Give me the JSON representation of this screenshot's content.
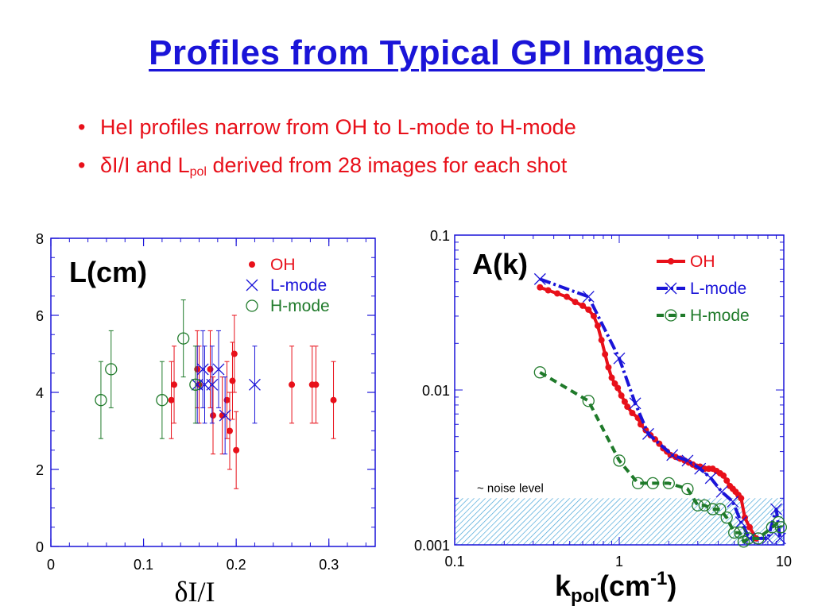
{
  "slide": {
    "title": "Profiles from Typical GPI Images",
    "bullets": [
      {
        "text": "HeI profiles narrow from OH to L-mode to H-mode"
      },
      {
        "text_a": "δI/I and L",
        "sub": "pol",
        "text_b": " derived from 28 images for each shot"
      }
    ]
  },
  "colors": {
    "title": "#1a14d8",
    "bullets": "#e8101a",
    "oh": "#e8101a",
    "lmode": "#1a14d8",
    "hmode": "#1f7a2a",
    "noise_fill": "#8fd0ee"
  },
  "chart_data": [
    {
      "type": "scatter",
      "inner_label": "L(cm)",
      "xlabel": "δI/I",
      "ylabel": "",
      "xlim": [
        0,
        0.35
      ],
      "ylim": [
        0,
        8
      ],
      "xticks": [
        0,
        0.1,
        0.2,
        0.3
      ],
      "xtick_labels": [
        "0",
        "0.1",
        "0.2",
        "0.3"
      ],
      "yticks": [
        0,
        2,
        4,
        6,
        8
      ],
      "ytick_labels": [
        "0",
        "2",
        "4",
        "6",
        "8"
      ],
      "grid": false,
      "legend_position": "top-right",
      "series": [
        {
          "name": "OH",
          "marker": "dot",
          "color": "#e8101a",
          "points": [
            {
              "x": 0.13,
              "y": 3.8,
              "err": 1.0
            },
            {
              "x": 0.133,
              "y": 4.2,
              "err": 1.0
            },
            {
              "x": 0.158,
              "y": 4.6,
              "err": 1.0
            },
            {
              "x": 0.16,
              "y": 4.2,
              "err": 1.0
            },
            {
              "x": 0.172,
              "y": 4.6,
              "err": 1.0
            },
            {
              "x": 0.175,
              "y": 3.4,
              "err": 1.0
            },
            {
              "x": 0.185,
              "y": 3.4,
              "err": 1.0
            },
            {
              "x": 0.19,
              "y": 3.8,
              "err": 1.0
            },
            {
              "x": 0.193,
              "y": 3.0,
              "err": 1.0
            },
            {
              "x": 0.196,
              "y": 4.3,
              "err": 1.0
            },
            {
              "x": 0.198,
              "y": 5.0,
              "err": 1.0
            },
            {
              "x": 0.2,
              "y": 2.5,
              "err": 1.0
            },
            {
              "x": 0.26,
              "y": 4.2,
              "err": 1.0
            },
            {
              "x": 0.282,
              "y": 4.2,
              "err": 1.0
            },
            {
              "x": 0.286,
              "y": 4.2,
              "err": 1.0
            },
            {
              "x": 0.305,
              "y": 3.8,
              "err": 1.0
            }
          ]
        },
        {
          "name": "L-mode",
          "marker": "x",
          "color": "#1a14d8",
          "points": [
            {
              "x": 0.158,
              "y": 4.2,
              "err": 1.0
            },
            {
              "x": 0.164,
              "y": 4.6,
              "err": 1.0
            },
            {
              "x": 0.166,
              "y": 4.2,
              "err": 1.0
            },
            {
              "x": 0.174,
              "y": 4.2,
              "err": 1.0
            },
            {
              "x": 0.181,
              "y": 4.6,
              "err": 1.0
            },
            {
              "x": 0.188,
              "y": 3.4,
              "err": 1.0
            },
            {
              "x": 0.22,
              "y": 4.2,
              "err": 1.0
            }
          ]
        },
        {
          "name": "H-mode",
          "marker": "circle",
          "color": "#1f7a2a",
          "points": [
            {
              "x": 0.054,
              "y": 3.8,
              "err": 1.0
            },
            {
              "x": 0.065,
              "y": 4.6,
              "err": 1.0
            },
            {
              "x": 0.12,
              "y": 3.8,
              "err": 1.0
            },
            {
              "x": 0.143,
              "y": 5.4,
              "err": 1.0
            },
            {
              "x": 0.156,
              "y": 4.2,
              "err": 1.0
            }
          ]
        }
      ]
    },
    {
      "type": "line",
      "inner_label": "A(k)",
      "xlabel_main": "k",
      "xlabel_sub": "pol",
      "xlabel_unit_a": "(cm",
      "xlabel_sup": "-1",
      "xlabel_unit_b": ")",
      "ylabel": "",
      "xscale": "log",
      "yscale": "log",
      "xlim": [
        0.1,
        10
      ],
      "ylim": [
        0.001,
        0.1
      ],
      "xticks": [
        0.1,
        1,
        10
      ],
      "xtick_labels": [
        "0.1",
        "1",
        "10"
      ],
      "yticks": [
        0.001,
        0.01,
        0.1
      ],
      "ytick_labels": [
        "0.001",
        "0.01",
        "0.1"
      ],
      "grid": false,
      "legend_position": "top-right",
      "noise_band": {
        "y_from": 0.001,
        "y_to": 0.002,
        "label": "~ noise level"
      },
      "series": [
        {
          "name": "OH",
          "marker": "dot",
          "color": "#e8101a",
          "line": "solid",
          "points": [
            [
              0.33,
              0.046
            ],
            [
              0.37,
              0.044
            ],
            [
              0.42,
              0.042
            ],
            [
              0.48,
              0.04
            ],
            [
              0.54,
              0.037
            ],
            [
              0.6,
              0.035
            ],
            [
              0.65,
              0.033
            ],
            [
              0.7,
              0.03
            ],
            [
              0.74,
              0.026
            ],
            [
              0.78,
              0.021
            ],
            [
              0.82,
              0.017
            ],
            [
              0.86,
              0.014
            ],
            [
              0.9,
              0.012
            ],
            [
              0.94,
              0.011
            ],
            [
              0.98,
              0.0103
            ],
            [
              1.03,
              0.0092
            ],
            [
              1.08,
              0.0084
            ],
            [
              1.12,
              0.0078
            ],
            [
              1.2,
              0.0071
            ],
            [
              1.3,
              0.0066
            ],
            [
              1.35,
              0.006
            ],
            [
              1.45,
              0.0055
            ],
            [
              1.55,
              0.0051
            ],
            [
              1.65,
              0.0048
            ],
            [
              1.75,
              0.0045
            ],
            [
              1.85,
              0.0042
            ],
            [
              1.95,
              0.004
            ],
            [
              2.05,
              0.0038
            ],
            [
              2.2,
              0.0037
            ],
            [
              2.35,
              0.0036
            ],
            [
              2.5,
              0.0035
            ],
            [
              2.65,
              0.0034
            ],
            [
              2.8,
              0.0033
            ],
            [
              2.95,
              0.0032
            ],
            [
              3.1,
              0.0032
            ],
            [
              3.3,
              0.0031
            ],
            [
              3.5,
              0.0031
            ],
            [
              3.7,
              0.0031
            ],
            [
              3.9,
              0.003
            ],
            [
              4.1,
              0.0029
            ],
            [
              4.3,
              0.0028
            ],
            [
              4.5,
              0.0026
            ],
            [
              4.7,
              0.0024
            ],
            [
              4.9,
              0.0023
            ],
            [
              5.1,
              0.0022
            ],
            [
              5.3,
              0.0021
            ],
            [
              5.5,
              0.002
            ],
            [
              5.8,
              0.0015
            ],
            [
              6.2,
              0.0013
            ],
            [
              6.8,
              0.0011
            ]
          ]
        },
        {
          "name": "L-mode",
          "marker": "x",
          "color": "#1a14d8",
          "line": "dashdot",
          "points": [
            [
              0.33,
              0.052
            ],
            [
              0.65,
              0.04
            ],
            [
              1.0,
              0.016
            ],
            [
              1.25,
              0.0082
            ],
            [
              1.5,
              0.0052
            ],
            [
              2.1,
              0.0038
            ],
            [
              2.6,
              0.0035
            ],
            [
              3.1,
              0.0031
            ],
            [
              3.6,
              0.0027
            ],
            [
              4.2,
              0.0022
            ],
            [
              4.9,
              0.0019
            ],
            [
              5.5,
              0.0014
            ],
            [
              6.2,
              0.0011
            ],
            [
              8.0,
              0.0011
            ],
            [
              9.0,
              0.0017
            ],
            [
              9.5,
              0.0011
            ]
          ]
        },
        {
          "name": "H-mode",
          "marker": "circle",
          "color": "#1f7a2a",
          "line": "dashed",
          "points": [
            [
              0.33,
              0.013
            ],
            [
              0.65,
              0.0085
            ],
            [
              1.0,
              0.0035
            ],
            [
              1.3,
              0.0025
            ],
            [
              1.6,
              0.0025
            ],
            [
              2.0,
              0.0025
            ],
            [
              2.6,
              0.0023
            ],
            [
              3.0,
              0.0018
            ],
            [
              3.3,
              0.0018
            ],
            [
              3.7,
              0.0017
            ],
            [
              4.1,
              0.0017
            ],
            [
              4.5,
              0.0015
            ],
            [
              5.0,
              0.0012
            ],
            [
              5.4,
              0.0012
            ],
            [
              5.7,
              0.00105
            ],
            [
              6.1,
              0.0011
            ],
            [
              7.0,
              0.0011
            ],
            [
              8.5,
              0.0013
            ],
            [
              9.3,
              0.0014
            ],
            [
              9.6,
              0.0013
            ]
          ]
        }
      ]
    }
  ]
}
